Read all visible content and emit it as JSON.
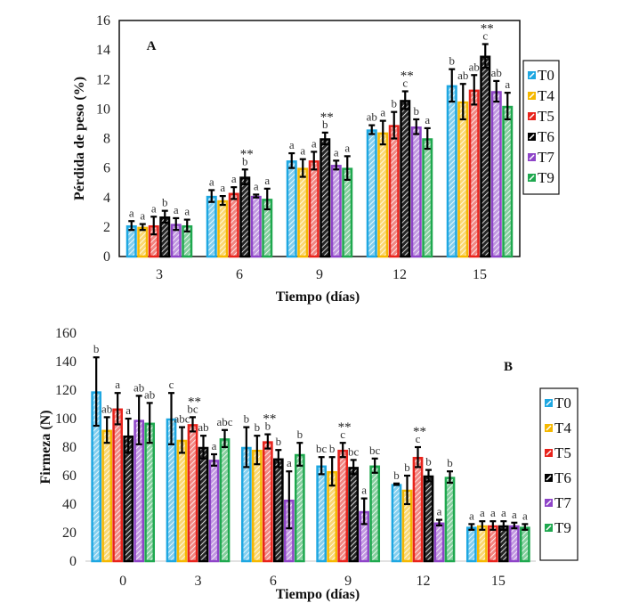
{
  "chart_data": [
    {
      "type": "bar",
      "panel_label": "A",
      "title": "",
      "xlabel": "Tiempo (días)",
      "ylabel": "Pérdida de peso (%)",
      "ylim": [
        0,
        16
      ],
      "yticks": [
        "0",
        "2",
        "4",
        "6",
        "8",
        "10",
        "12",
        "14",
        "16"
      ],
      "categories": [
        "3",
        "6",
        "9",
        "12",
        "15"
      ],
      "frame": true,
      "legend_position": "right",
      "series": [
        {
          "name": "T0",
          "color": "#1ea7e1",
          "values": [
            2.1,
            4.1,
            6.5,
            8.6,
            11.6
          ],
          "errors": [
            0.3,
            0.4,
            0.5,
            0.3,
            1.1
          ],
          "letters": [
            "a",
            "a",
            "a",
            "ab",
            "b"
          ]
        },
        {
          "name": "T4",
          "color": "#f5b800",
          "values": [
            2.0,
            3.8,
            6.0,
            8.4,
            10.5
          ],
          "errors": [
            0.2,
            0.3,
            0.6,
            0.8,
            1.2
          ],
          "letters": [
            "a",
            "a",
            "a",
            "a",
            "ab"
          ]
        },
        {
          "name": "T5",
          "color": "#e8231c",
          "values": [
            2.1,
            4.3,
            6.5,
            8.9,
            11.3
          ],
          "errors": [
            0.6,
            0.4,
            0.6,
            0.9,
            1.0
          ],
          "letters": [
            "a",
            "a",
            "a",
            "b",
            "ab"
          ]
        },
        {
          "name": "T6",
          "color": "#000000",
          "values": [
            2.7,
            5.4,
            8.0,
            10.6,
            13.6
          ],
          "errors": [
            0.4,
            0.5,
            0.4,
            0.6,
            0.8
          ],
          "letters": [
            "b",
            "b",
            "b",
            "c",
            "c"
          ]
        },
        {
          "name": "T7",
          "color": "#8e44c8",
          "values": [
            2.2,
            4.1,
            6.2,
            8.8,
            11.2
          ],
          "errors": [
            0.4,
            0.1,
            0.3,
            0.5,
            0.7
          ],
          "letters": [
            "a",
            "a",
            "a",
            "b",
            "ab"
          ]
        },
        {
          "name": "T9",
          "color": "#1fa84f",
          "values": [
            2.1,
            3.9,
            6.0,
            8.0,
            10.2
          ],
          "errors": [
            0.4,
            0.7,
            0.8,
            0.7,
            0.9
          ],
          "letters": [
            "a",
            "a",
            "a",
            "a",
            "a"
          ]
        }
      ],
      "significance_marks": [
        {
          "category": "6",
          "series": "T6",
          "label": "**"
        },
        {
          "category": "9",
          "series": "T6",
          "label": "**"
        },
        {
          "category": "12",
          "series": "T6",
          "label": "**"
        },
        {
          "category": "15",
          "series": "T6",
          "label": "**"
        }
      ]
    },
    {
      "type": "bar",
      "panel_label": "B",
      "title": "",
      "xlabel": "Tiempo (días)",
      "ylabel": "Firmeza (N)",
      "ylim": [
        0,
        160
      ],
      "yticks": [
        "0",
        "20",
        "40",
        "60",
        "80",
        "100",
        "120",
        "140",
        "160"
      ],
      "categories": [
        "0",
        "3",
        "6",
        "9",
        "12",
        "15"
      ],
      "frame": false,
      "legend_position": "right",
      "series": [
        {
          "name": "T0",
          "color": "#1ea7e1",
          "values": [
            119,
            100,
            80,
            67,
            54,
            24
          ],
          "errors": [
            24,
            18,
            14,
            6,
            0.5,
            2
          ],
          "letters": [
            "b",
            "c",
            "b",
            "bc",
            "b",
            "a"
          ]
        },
        {
          "name": "T4",
          "color": "#f5b800",
          "values": [
            92,
            85,
            78,
            63,
            50,
            25
          ],
          "errors": [
            9,
            9,
            10,
            10,
            10,
            3
          ],
          "letters": [
            "ab",
            "abc",
            "b",
            "b",
            "b",
            "a"
          ]
        },
        {
          "name": "T5",
          "color": "#e8231c",
          "values": [
            107,
            96,
            84,
            78,
            73,
            25
          ],
          "errors": [
            11,
            5,
            5,
            5,
            7,
            3
          ],
          "letters": [
            "a",
            "bc",
            "b",
            "c",
            "c",
            "a"
          ]
        },
        {
          "name": "T6",
          "color": "#000000",
          "values": [
            88,
            80,
            72,
            66,
            60,
            25
          ],
          "errors": [
            12,
            8,
            6,
            5,
            4,
            3
          ],
          "letters": [
            "a",
            "ab",
            "b",
            "bc",
            "b",
            "a"
          ]
        },
        {
          "name": "T7",
          "color": "#8e44c8",
          "values": [
            99,
            71,
            43,
            35,
            27,
            25
          ],
          "errors": [
            17,
            4,
            20,
            9,
            2,
            2
          ],
          "letters": [
            "ab",
            "a",
            "a",
            "a",
            "a",
            "a"
          ]
        },
        {
          "name": "T9",
          "color": "#1fa84f",
          "values": [
            97,
            86,
            75,
            67,
            59,
            24
          ],
          "errors": [
            14,
            6,
            8,
            5,
            4,
            2
          ],
          "letters": [
            "ab",
            "abc",
            "b",
            "bc",
            "b",
            "a"
          ]
        }
      ],
      "significance_marks": [
        {
          "category": "3",
          "series": "T5",
          "label": "**"
        },
        {
          "category": "6",
          "series": "T5",
          "label": "**"
        },
        {
          "category": "9",
          "series": "T5",
          "label": "**"
        },
        {
          "category": "12",
          "series": "T5",
          "label": "**"
        }
      ]
    }
  ]
}
